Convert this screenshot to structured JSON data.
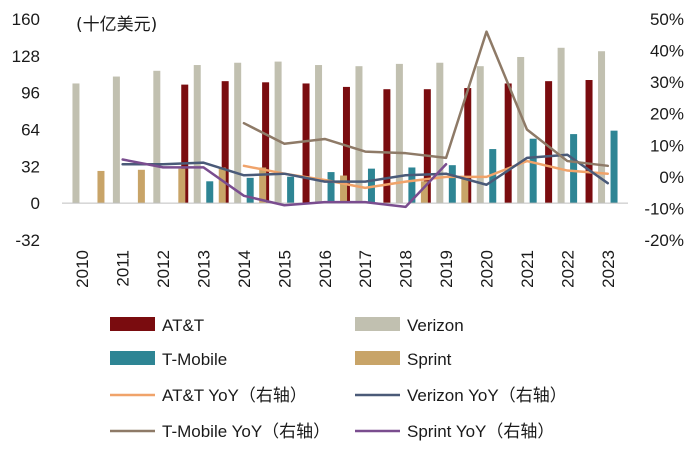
{
  "chart_data": {
    "type": "bar+line",
    "unit_label": "(十亿美元)",
    "categories": [
      "2010",
      "2011",
      "2012",
      "2013",
      "2014",
      "2015",
      "2016",
      "2017",
      "2018",
      "2019",
      "2020",
      "2021",
      "2022",
      "2023"
    ],
    "left_axis": {
      "min": -32,
      "max": 160,
      "ticks": [
        "-32",
        "0",
        "32",
        "64",
        "96",
        "128",
        "160"
      ]
    },
    "right_axis": {
      "min": -20,
      "max": 50,
      "ticks": [
        "-20%",
        "-10%",
        "0%",
        "10%",
        "20%",
        "30%",
        "40%",
        "50%"
      ]
    },
    "bar_series": [
      {
        "name": "AT&T",
        "color": "#7a0c0f",
        "values": [
          null,
          null,
          null,
          103,
          106,
          105,
          104,
          101,
          99,
          99,
          100,
          104,
          106,
          107
        ]
      },
      {
        "name": "Verizon",
        "color": "#c1c0b0",
        "values": [
          104,
          110,
          115,
          120,
          122,
          123,
          120,
          119,
          121,
          122,
          119,
          127,
          135,
          132
        ]
      },
      {
        "name": "T-Mobile",
        "color": "#2e8594",
        "values": [
          null,
          null,
          null,
          19,
          22,
          23,
          27,
          30,
          31,
          33,
          47,
          56,
          60,
          63
        ]
      },
      {
        "name": "Sprint",
        "color": "#c8a468",
        "values": [
          28,
          29,
          30,
          31,
          31,
          null,
          24,
          null,
          19,
          21,
          null,
          null,
          null,
          null
        ]
      }
    ],
    "line_series": [
      {
        "name": "AT&T YoY（右轴）",
        "color": "#f0a36a",
        "values": [
          null,
          null,
          null,
          null,
          3.5,
          1,
          -1,
          -3.5,
          -1.5,
          0,
          0,
          5,
          2,
          1
        ]
      },
      {
        "name": "Verizon YoY（右轴）",
        "color": "#4a5a78",
        "values": [
          null,
          4,
          4,
          4.5,
          0.5,
          1,
          -1.5,
          -1.5,
          0.5,
          1,
          -2.5,
          6,
          7,
          -2
        ]
      },
      {
        "name": "T-Mobile YoY（右轴）",
        "color": "#8e7a67",
        "values": [
          null,
          null,
          null,
          null,
          17,
          10.5,
          12,
          8,
          7.5,
          6,
          46,
          15,
          5,
          3.5
        ]
      },
      {
        "name": "Sprint YoY（右轴）",
        "color": "#7a4d8f",
        "values": [
          null,
          5.5,
          3,
          3,
          -6,
          -9,
          -8,
          -8,
          -9.5,
          4,
          null,
          null,
          null,
          null
        ]
      }
    ]
  }
}
